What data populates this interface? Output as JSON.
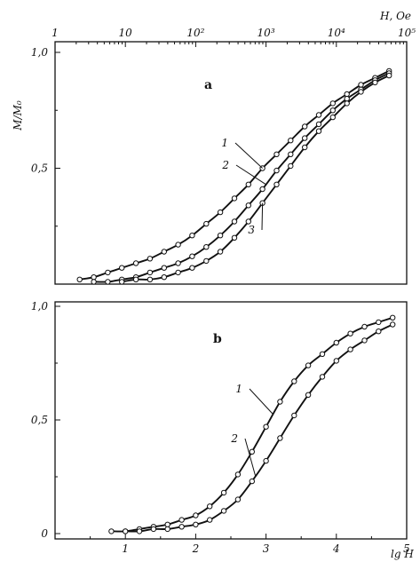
{
  "chart_data": [
    {
      "type": "line",
      "panel": "a",
      "top_axis": {
        "label": "H, Oe",
        "tick_labels": [
          "1",
          "10",
          "10²",
          "10³",
          "10⁴",
          "10⁵"
        ],
        "tick_log_values": [
          0,
          1,
          2,
          3,
          4,
          5
        ]
      },
      "ylabel": "M/M₀",
      "y_tick_labels": [
        "1,0",
        "0,5"
      ],
      "y_ticks": [
        1.0,
        0.5
      ],
      "xlim": [
        0,
        5
      ],
      "ylim": [
        0,
        1.0
      ],
      "series": [
        {
          "name": "1",
          "x": [
            0.35,
            0.55,
            0.75,
            0.95,
            1.15,
            1.35,
            1.55,
            1.75,
            1.95,
            2.15,
            2.35,
            2.55,
            2.75,
            2.95,
            3.15,
            3.35,
            3.55,
            3.75,
            3.95,
            4.15,
            4.35,
            4.55,
            4.75
          ],
          "y": [
            0.02,
            0.03,
            0.05,
            0.07,
            0.09,
            0.11,
            0.14,
            0.17,
            0.21,
            0.26,
            0.31,
            0.37,
            0.43,
            0.5,
            0.56,
            0.62,
            0.68,
            0.73,
            0.78,
            0.82,
            0.86,
            0.89,
            0.92
          ]
        },
        {
          "name": "2",
          "x": [
            0.55,
            0.75,
            0.95,
            1.15,
            1.35,
            1.55,
            1.75,
            1.95,
            2.15,
            2.35,
            2.55,
            2.75,
            2.95,
            3.15,
            3.35,
            3.55,
            3.75,
            3.95,
            4.15,
            4.35,
            4.55,
            4.75
          ],
          "y": [
            0.01,
            0.01,
            0.02,
            0.03,
            0.05,
            0.07,
            0.09,
            0.12,
            0.16,
            0.21,
            0.27,
            0.34,
            0.41,
            0.49,
            0.56,
            0.63,
            0.69,
            0.75,
            0.8,
            0.84,
            0.88,
            0.91
          ]
        },
        {
          "name": "3",
          "x": [
            0.95,
            1.15,
            1.35,
            1.55,
            1.75,
            1.95,
            2.15,
            2.35,
            2.55,
            2.75,
            2.95,
            3.15,
            3.35,
            3.55,
            3.75,
            3.95,
            4.15,
            4.35,
            4.55,
            4.75
          ],
          "y": [
            0.01,
            0.02,
            0.02,
            0.03,
            0.05,
            0.07,
            0.1,
            0.14,
            0.2,
            0.27,
            0.35,
            0.43,
            0.51,
            0.59,
            0.66,
            0.72,
            0.78,
            0.83,
            0.87,
            0.9
          ]
        }
      ]
    },
    {
      "type": "line",
      "panel": "b",
      "xlabel": "lg H",
      "x_tick_labels": [
        "1",
        "2",
        "3",
        "4",
        "5"
      ],
      "x_ticks": [
        1,
        2,
        3,
        4,
        5
      ],
      "y_tick_labels": [
        "1,0",
        "0,5",
        "0"
      ],
      "y_ticks": [
        1.0,
        0.5,
        0
      ],
      "xlim": [
        0,
        5
      ],
      "ylim": [
        0,
        1.0
      ],
      "series": [
        {
          "name": "1",
          "x": [
            0.8,
            1.0,
            1.2,
            1.4,
            1.6,
            1.8,
            2.0,
            2.2,
            2.4,
            2.6,
            2.8,
            3.0,
            3.2,
            3.4,
            3.6,
            3.8,
            4.0,
            4.2,
            4.4,
            4.6,
            4.8
          ],
          "y": [
            0.01,
            0.01,
            0.02,
            0.03,
            0.04,
            0.06,
            0.08,
            0.12,
            0.18,
            0.26,
            0.36,
            0.47,
            0.58,
            0.67,
            0.74,
            0.79,
            0.84,
            0.88,
            0.91,
            0.93,
            0.95
          ]
        },
        {
          "name": "2",
          "x": [
            1.0,
            1.2,
            1.4,
            1.6,
            1.8,
            2.0,
            2.2,
            2.4,
            2.6,
            2.8,
            3.0,
            3.2,
            3.4,
            3.6,
            3.8,
            4.0,
            4.2,
            4.4,
            4.6,
            4.8
          ],
          "y": [
            0.01,
            0.01,
            0.02,
            0.02,
            0.03,
            0.04,
            0.06,
            0.1,
            0.15,
            0.23,
            0.32,
            0.42,
            0.52,
            0.61,
            0.69,
            0.76,
            0.81,
            0.85,
            0.89,
            0.92
          ]
        }
      ]
    }
  ]
}
